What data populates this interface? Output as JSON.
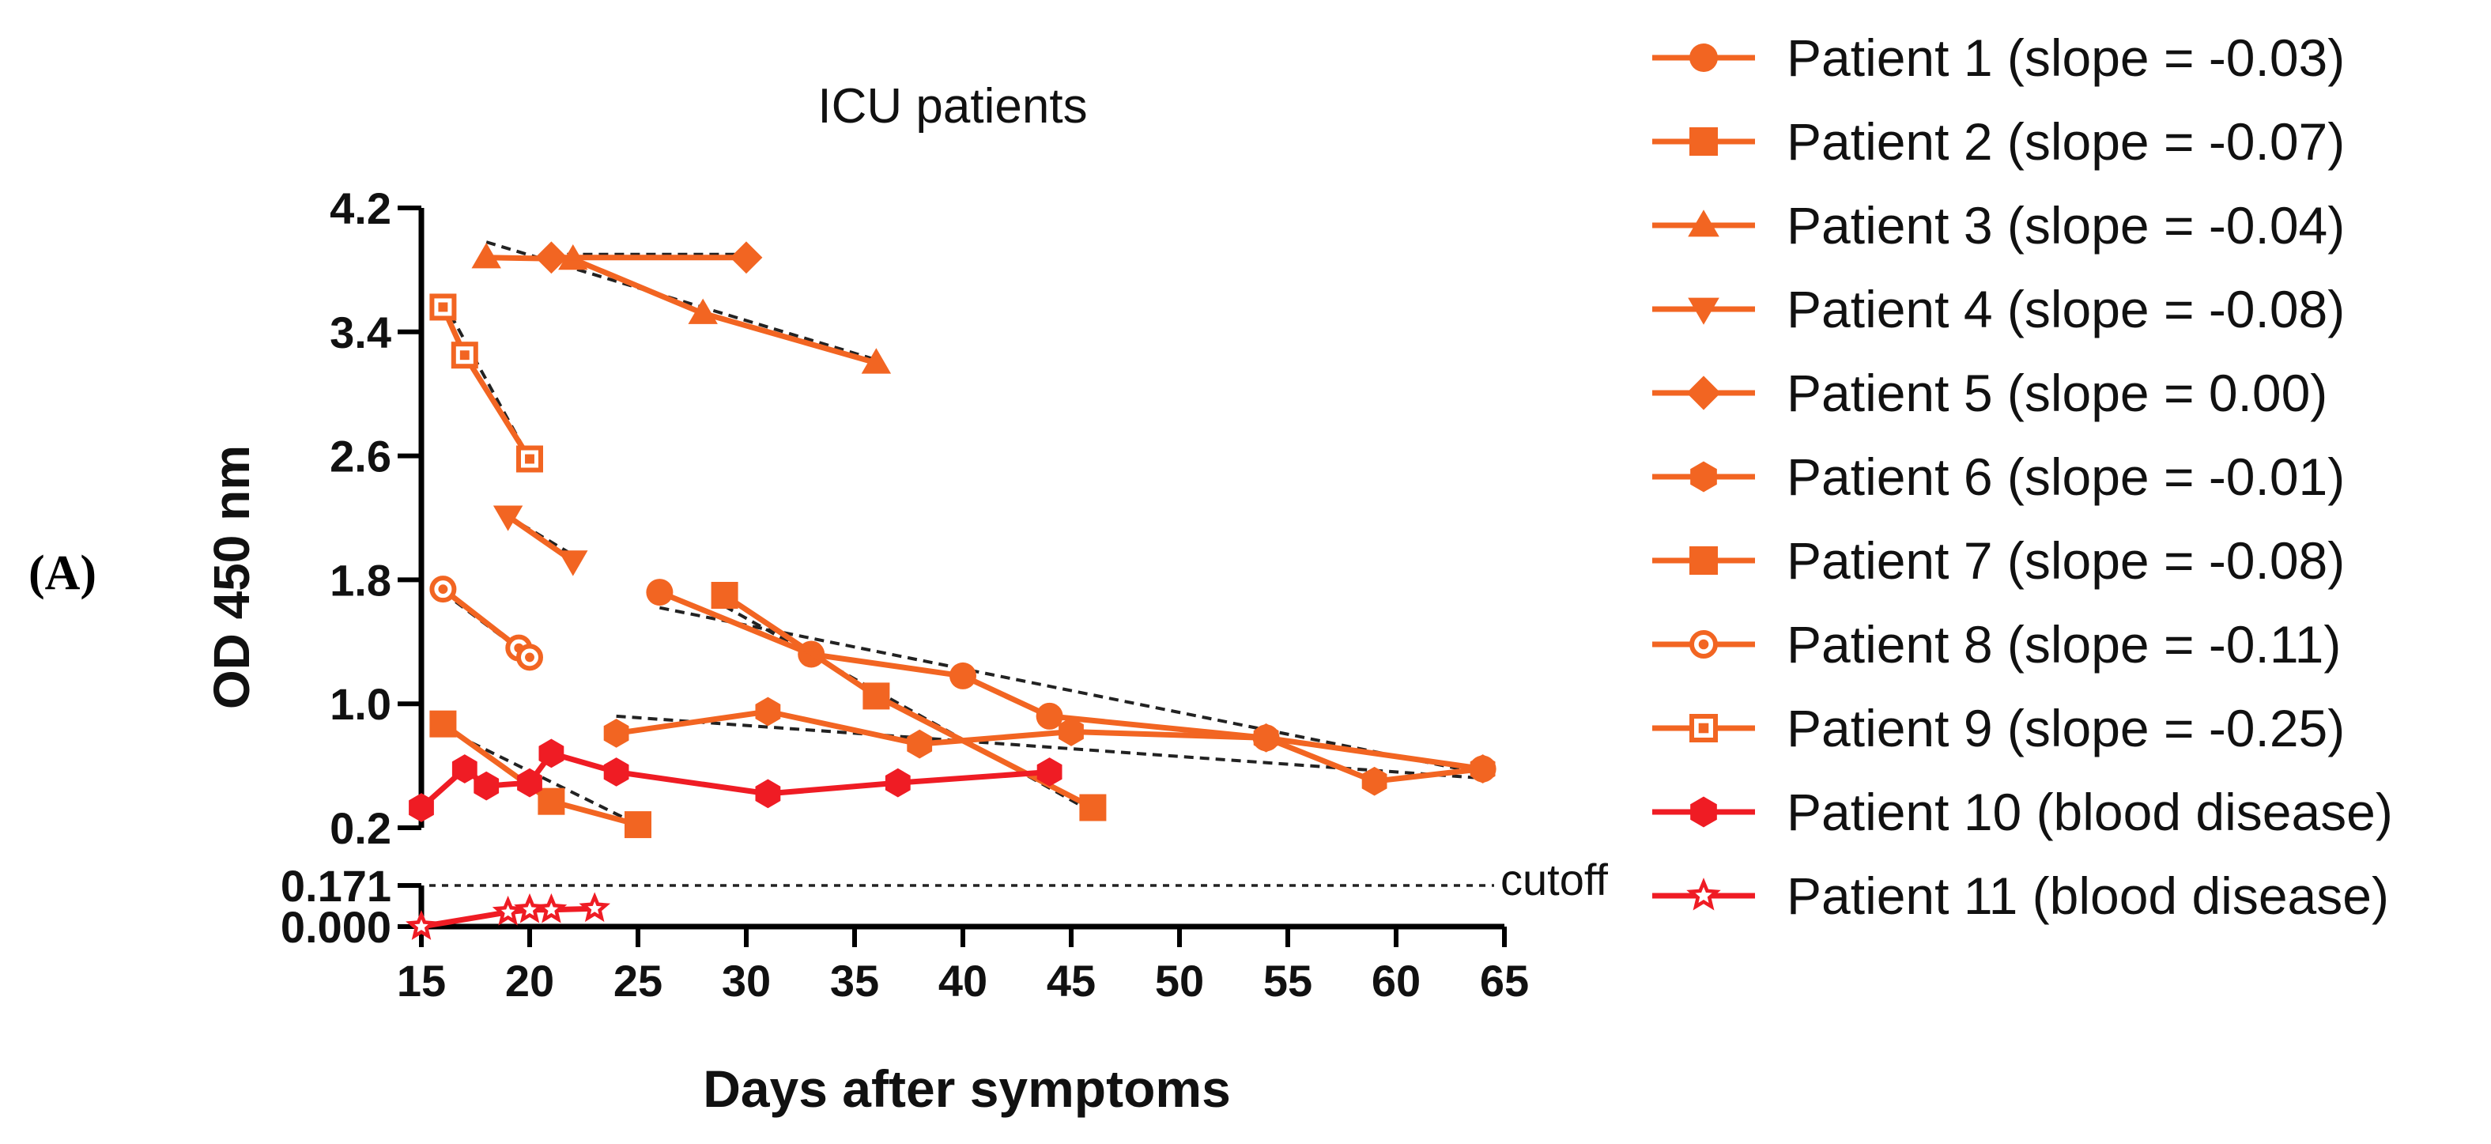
{
  "panel_label": "(A)",
  "chart_data": {
    "type": "line",
    "title": "ICU patients",
    "xlabel": "Days after symptoms",
    "ylabel": "OD 450 nm",
    "xlim": [
      15,
      65
    ],
    "x_ticks": [
      "15",
      "20",
      "25",
      "30",
      "35",
      "40",
      "45",
      "50",
      "55",
      "60",
      "65"
    ],
    "ylim_upper": [
      0.2,
      4.2
    ],
    "y_ticks_upper": [
      "0.2",
      "1.0",
      "1.8",
      "2.6",
      "3.4",
      "4.2"
    ],
    "ylim_lower": [
      0.0,
      0.171
    ],
    "y_ticks_lower": [
      "0.000",
      "0.171"
    ],
    "cutoff": {
      "value": 0.171,
      "label": "cutoff"
    },
    "colors": {
      "orange": "#f26522",
      "red": "#ef1c24",
      "trend": "#222222"
    },
    "series": [
      {
        "name": "Patient 1 (slope = -0.03)",
        "marker": "circle",
        "color": "#f26522",
        "x": [
          26,
          33,
          40,
          44,
          54,
          64
        ],
        "y": [
          1.72,
          1.32,
          1.18,
          0.92,
          0.78,
          0.58
        ]
      },
      {
        "name": "Patient 2 (slope = -0.07)",
        "marker": "square",
        "color": "#f26522",
        "x": [
          29,
          36,
          46
        ],
        "y": [
          1.7,
          1.05,
          0.33
        ]
      },
      {
        "name": "Patient 3 (slope = -0.04)",
        "marker": "triangle-up",
        "color": "#f26522",
        "x": [
          18,
          22,
          28,
          36
        ],
        "y": [
          3.88,
          3.87,
          3.52,
          3.2
        ]
      },
      {
        "name": "Patient 4 (slope = -0.08)",
        "marker": "triangle-down",
        "color": "#f26522",
        "x": [
          19,
          22
        ],
        "y": [
          2.21,
          1.92
        ]
      },
      {
        "name": "Patient 5 (slope = 0.00)",
        "marker": "diamond",
        "color": "#f26522",
        "x": [
          21,
          30
        ],
        "y": [
          3.88,
          3.88
        ]
      },
      {
        "name": "Patient 6 (slope = -0.01)",
        "marker": "hexagon",
        "color": "#f26522",
        "x": [
          24,
          31,
          38,
          45,
          54,
          59,
          64
        ],
        "y": [
          0.81,
          0.95,
          0.74,
          0.82,
          0.78,
          0.5,
          0.58
        ]
      },
      {
        "name": "Patient 7 (slope = -0.08)",
        "marker": "square",
        "color": "#f26522",
        "x": [
          16,
          21,
          25
        ],
        "y": [
          0.87,
          0.37,
          0.22
        ]
      },
      {
        "name": "Patient 8 (slope = -0.11)",
        "marker": "circle-dot",
        "color": "#f26522",
        "x": [
          16,
          19.5,
          20
        ],
        "y": [
          1.74,
          1.36,
          1.3
        ]
      },
      {
        "name": "Patient 9 (slope = -0.25)",
        "marker": "square-dot",
        "color": "#f26522",
        "x": [
          16,
          17,
          20
        ],
        "y": [
          3.56,
          3.25,
          2.58
        ]
      },
      {
        "name": "Patient 10 (blood disease)",
        "marker": "hexagon",
        "color": "#ef1c24",
        "x": [
          15,
          17,
          18,
          20,
          21,
          24,
          31,
          37,
          44
        ],
        "y": [
          0.33,
          0.58,
          0.47,
          0.49,
          0.68,
          0.56,
          0.42,
          0.49,
          0.56
        ]
      },
      {
        "name": "Patient 11 (blood disease)",
        "marker": "star-open",
        "color": "#ef1c24",
        "x": [
          15,
          19,
          20,
          21,
          23
        ],
        "y": [
          0.0,
          0.06,
          0.07,
          0.07,
          0.075
        ],
        "axis": "lower"
      }
    ],
    "trend_lines": [
      {
        "series": "Patient 1",
        "x": [
          26,
          64
        ],
        "y": [
          1.62,
          0.55
        ]
      },
      {
        "series": "Patient 2",
        "x": [
          29,
          46
        ],
        "y": [
          1.63,
          0.3
        ]
      },
      {
        "series": "Patient 3",
        "x": [
          18,
          36
        ],
        "y": [
          3.98,
          3.22
        ]
      },
      {
        "series": "Patient 4",
        "x": [
          19,
          22
        ],
        "y": [
          2.21,
          1.96
        ]
      },
      {
        "series": "Patient 5",
        "x": [
          21,
          30
        ],
        "y": [
          3.9,
          3.9
        ]
      },
      {
        "series": "Patient 6",
        "x": [
          24,
          64
        ],
        "y": [
          0.92,
          0.52
        ]
      },
      {
        "series": "Patient 7",
        "x": [
          16,
          25
        ],
        "y": [
          0.84,
          0.22
        ]
      },
      {
        "series": "Patient 8",
        "x": [
          16,
          20
        ],
        "y": [
          1.72,
          1.3
        ]
      },
      {
        "series": "Patient 9",
        "x": [
          16,
          20
        ],
        "y": [
          3.6,
          2.58
        ]
      }
    ]
  }
}
